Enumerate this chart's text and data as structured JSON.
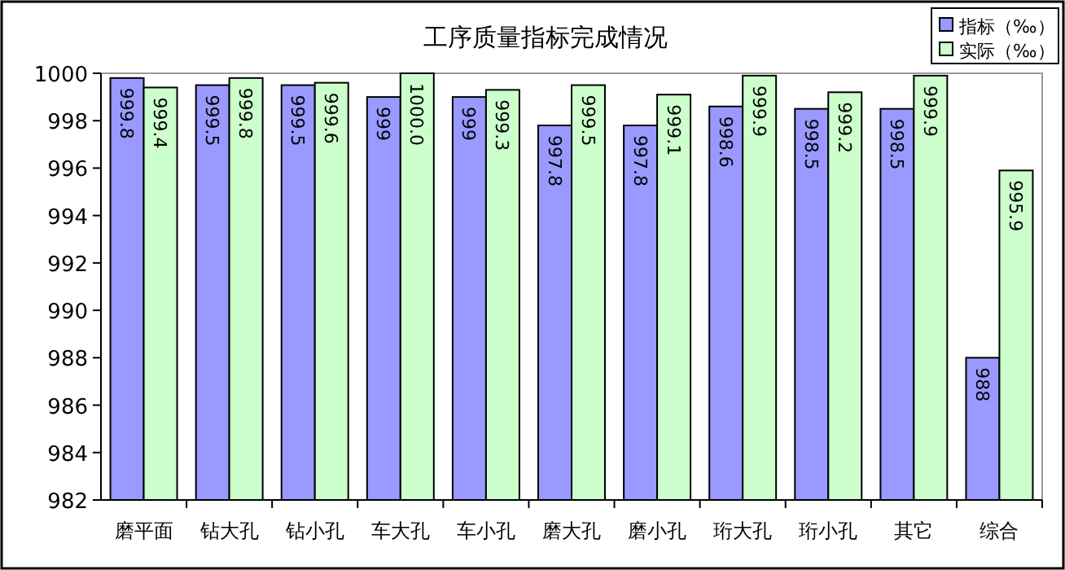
{
  "chart_data": {
    "type": "bar",
    "title": "工序质量指标完成情况",
    "categories": [
      "磨平面",
      "钻大孔",
      "钻小孔",
      "车大孔",
      "车小孔",
      "磨大孔",
      "磨小孔",
      "珩大孔",
      "珩小孔",
      "其它",
      "综合"
    ],
    "series": [
      {
        "name": "指标（‰）",
        "color": "#9999ff",
        "values": [
          999.8,
          999.5,
          999.5,
          999,
          999,
          997.8,
          997.8,
          998.6,
          998.5,
          998.5,
          988
        ]
      },
      {
        "name": "实际（‰）",
        "color": "#ccffcc",
        "values": [
          999.4,
          999.8,
          999.6,
          1000.0,
          999.3,
          999.5,
          999.1,
          999.9,
          999.2,
          999.9,
          995.9
        ],
        "value_labels": [
          "999.4",
          "999.8",
          "999.6",
          "1000.0",
          "999.3",
          "999.5",
          "999.1",
          "999.9",
          "999.2",
          "999.9",
          "995.9"
        ]
      }
    ],
    "ylim": [
      982,
      1000
    ],
    "yticks": [
      982,
      984,
      986,
      988,
      990,
      992,
      994,
      996,
      998,
      1000
    ],
    "data_labels": true,
    "legend": "top right",
    "grid": false
  }
}
